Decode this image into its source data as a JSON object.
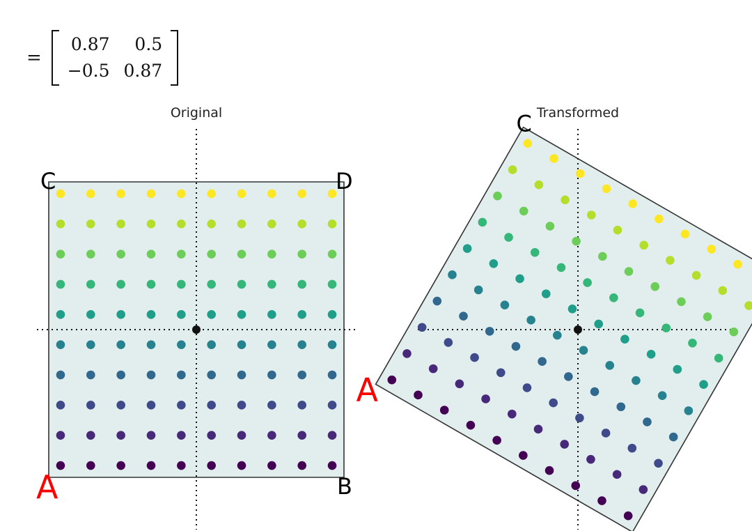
{
  "matrix": {
    "equals_sign": "=",
    "rows": [
      [
        "0.87",
        "0.5"
      ],
      [
        "−0.5",
        "0.87"
      ]
    ],
    "values": [
      [
        0.87,
        0.5
      ],
      [
        -0.5,
        0.87
      ]
    ]
  },
  "plots": [
    {
      "id": "original",
      "title": "Original"
    },
    {
      "id": "transformed",
      "title": "Transformed"
    }
  ],
  "corners": {
    "a": "A",
    "b": "B",
    "c": "C",
    "d": "D"
  },
  "colors": {
    "fill": "#e2eeee",
    "edge": "#333333",
    "corner_a": "#ff0000",
    "corner_others": "#000000",
    "axis": "#111111",
    "colormap": "viridis"
  },
  "grid": {
    "columns": 10,
    "rows": 10,
    "range": [
      -1,
      1
    ]
  }
}
